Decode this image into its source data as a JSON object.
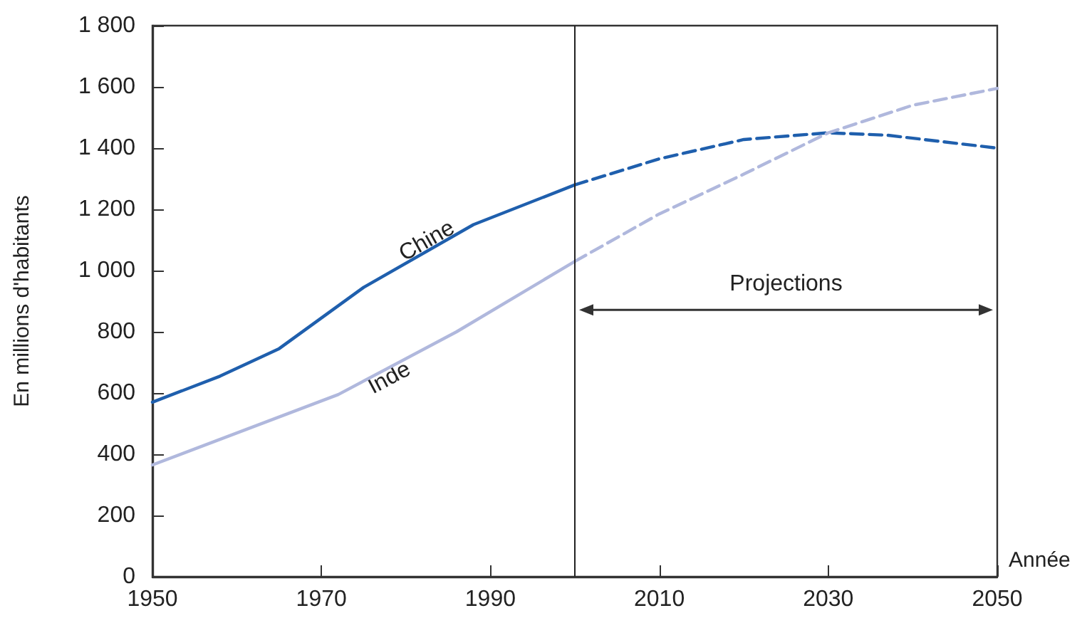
{
  "chart_data": {
    "type": "line",
    "xlabel": "Année",
    "ylabel": "En millions d'habitants",
    "series": [
      {
        "name": "Chine",
        "color": "#1f5fad",
        "line_style": "solid",
        "x": [
          1950,
          1958,
          1965,
          1975,
          1988,
          2000
        ],
        "values": [
          570,
          655,
          745,
          945,
          1150,
          1280
        ]
      },
      {
        "color": "#1f5fad",
        "line_style": "dashed",
        "x": [
          2000,
          2010,
          2020,
          2030,
          2037,
          2050
        ],
        "values": [
          1280,
          1365,
          1428,
          1450,
          1442,
          1400
        ]
      },
      {
        "name": "Inde",
        "color": "#b0b8dd",
        "line_style": "solid",
        "x": [
          1950,
          1972,
          1986,
          2000
        ],
        "values": [
          365,
          595,
          800,
          1030
        ]
      },
      {
        "color": "#b0b8dd",
        "line_style": "dashed",
        "x": [
          2000,
          2010,
          2020,
          2030,
          2040,
          2050
        ],
        "values": [
          1030,
          1185,
          1315,
          1450,
          1540,
          1595
        ]
      }
    ],
    "xlim": [
      1950,
      2050
    ],
    "xticks": [
      1950,
      1970,
      1990,
      2010,
      2030,
      2050
    ],
    "ylim": [
      0,
      1800
    ],
    "yticks": [
      0,
      200,
      400,
      600,
      800,
      {
        "value": 1000,
        "label": "1 000"
      },
      {
        "value": 1200,
        "label": "1 200"
      },
      {
        "value": 1400,
        "label": "1 400"
      },
      {
        "value": 1600,
        "label": "1 600"
      },
      {
        "value": 1800,
        "label": "1 800"
      }
    ],
    "ref_lines": [
      {
        "axis": "x",
        "value": 2000,
        "color": "#222222"
      }
    ],
    "annotations": [
      "Projections"
    ],
    "grid": false,
    "legend": false,
    "marker": "none"
  }
}
